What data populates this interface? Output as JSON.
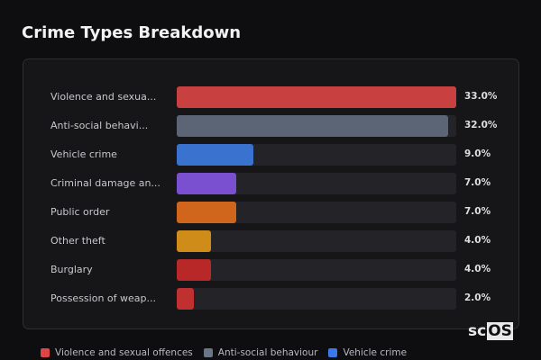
{
  "title": "Crime Types Breakdown",
  "logo": {
    "a": "sc",
    "b": "OS"
  },
  "chart_data": {
    "type": "bar",
    "orientation": "horizontal",
    "title": "Crime Types Breakdown",
    "categories": [
      "Violence and sexua...",
      "Anti-social behavi...",
      "Vehicle crime",
      "Criminal damage an...",
      "Public order",
      "Other theft",
      "Burglary",
      "Possession of weap..."
    ],
    "values": [
      33.0,
      32.0,
      9.0,
      7.0,
      7.0,
      4.0,
      4.0,
      2.0
    ],
    "value_labels": [
      "33.0%",
      "32.0%",
      "9.0%",
      "7.0%",
      "7.0%",
      "4.0%",
      "4.0%",
      "2.0%"
    ],
    "colors": [
      "#c94040",
      "#5b6575",
      "#3a72d0",
      "#7a50d0",
      "#d0661c",
      "#d08c18",
      "#b82828",
      "#c03030"
    ],
    "xlim": [
      0,
      33
    ],
    "legend": [
      {
        "name": "Violence and sexual offences",
        "color": "#e04444"
      },
      {
        "name": "Anti-social behaviour",
        "color": "#6b7588"
      },
      {
        "name": "Vehicle crime",
        "color": "#3a7ae8"
      }
    ],
    "legend_position": "bottom"
  }
}
